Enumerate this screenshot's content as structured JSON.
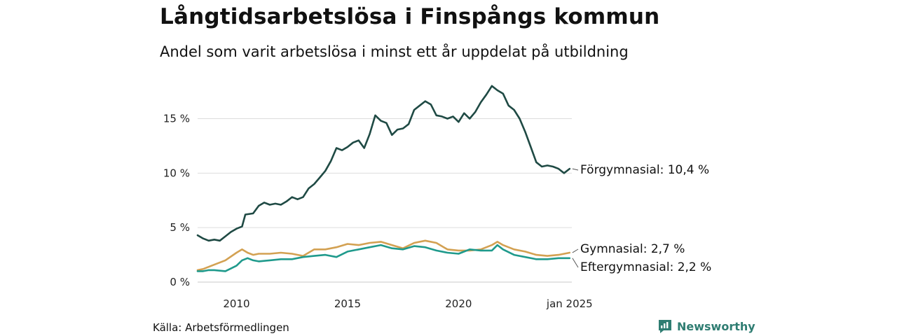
{
  "title": "Långtidsarbetslösa i Finspångs kommun",
  "subtitle": "Andel som varit arbetslösa i minst ett år uppdelat på utbildning",
  "source": "Källa: Arbetsförmedlingen",
  "brand": {
    "name": "Newsworthy",
    "icon": "newsworthy-logo-icon",
    "color": "#2f7d72"
  },
  "chart_data": {
    "type": "line",
    "title": "Långtidsarbetslösa i Finspångs kommun",
    "subtitle": "Andel som varit arbetslösa i minst ett år uppdelat på utbildning",
    "xlabel": "",
    "ylabel": "",
    "x_range": [
      2008.25,
      2025.1
    ],
    "ylim": [
      0,
      18.5
    ],
    "y_ticks": [
      0,
      5,
      10,
      15
    ],
    "y_tick_labels": [
      "0 %",
      "5 %",
      "10 %",
      "15 %"
    ],
    "x_ticks": [
      2010,
      2015,
      2020,
      2025.0
    ],
    "x_tick_labels": [
      "2010",
      "2015",
      "2020",
      "jan 2025"
    ],
    "grid": true,
    "series": [
      {
        "name": "Förgymnasial",
        "end_label": "Förgymnasial: 10,4 %",
        "color": "#1f4a44",
        "points": [
          [
            2008.25,
            4.3
          ],
          [
            2008.5,
            4.0
          ],
          [
            2008.75,
            3.8
          ],
          [
            2009.0,
            3.9
          ],
          [
            2009.25,
            3.8
          ],
          [
            2009.5,
            4.2
          ],
          [
            2009.75,
            4.6
          ],
          [
            2010.0,
            4.9
          ],
          [
            2010.25,
            5.1
          ],
          [
            2010.4,
            6.2
          ],
          [
            2010.75,
            6.3
          ],
          [
            2011.0,
            7.0
          ],
          [
            2011.25,
            7.3
          ],
          [
            2011.5,
            7.1
          ],
          [
            2011.75,
            7.2
          ],
          [
            2012.0,
            7.1
          ],
          [
            2012.25,
            7.4
          ],
          [
            2012.5,
            7.8
          ],
          [
            2012.75,
            7.6
          ],
          [
            2013.0,
            7.8
          ],
          [
            2013.25,
            8.6
          ],
          [
            2013.5,
            9.0
          ],
          [
            2013.75,
            9.6
          ],
          [
            2014.0,
            10.2
          ],
          [
            2014.25,
            11.1
          ],
          [
            2014.5,
            12.3
          ],
          [
            2014.75,
            12.1
          ],
          [
            2015.0,
            12.4
          ],
          [
            2015.25,
            12.8
          ],
          [
            2015.5,
            13.0
          ],
          [
            2015.75,
            12.3
          ],
          [
            2016.0,
            13.6
          ],
          [
            2016.25,
            15.3
          ],
          [
            2016.5,
            14.8
          ],
          [
            2016.75,
            14.6
          ],
          [
            2017.0,
            13.5
          ],
          [
            2017.25,
            14.0
          ],
          [
            2017.5,
            14.1
          ],
          [
            2017.75,
            14.5
          ],
          [
            2018.0,
            15.8
          ],
          [
            2018.25,
            16.2
          ],
          [
            2018.5,
            16.6
          ],
          [
            2018.75,
            16.3
          ],
          [
            2019.0,
            15.3
          ],
          [
            2019.25,
            15.2
          ],
          [
            2019.5,
            15.0
          ],
          [
            2019.75,
            15.2
          ],
          [
            2020.0,
            14.7
          ],
          [
            2020.25,
            15.5
          ],
          [
            2020.5,
            15.0
          ],
          [
            2020.75,
            15.6
          ],
          [
            2021.0,
            16.5
          ],
          [
            2021.25,
            17.2
          ],
          [
            2021.5,
            18.0
          ],
          [
            2021.75,
            17.6
          ],
          [
            2022.0,
            17.3
          ],
          [
            2022.25,
            16.2
          ],
          [
            2022.5,
            15.8
          ],
          [
            2022.75,
            15.0
          ],
          [
            2023.0,
            13.8
          ],
          [
            2023.25,
            12.4
          ],
          [
            2023.5,
            11.0
          ],
          [
            2023.75,
            10.6
          ],
          [
            2024.0,
            10.7
          ],
          [
            2024.25,
            10.6
          ],
          [
            2024.5,
            10.4
          ],
          [
            2024.75,
            10.0
          ],
          [
            2025.0,
            10.4
          ]
        ]
      },
      {
        "name": "Gymnasial",
        "end_label": "Gymnasial:  2,7 %",
        "color": "#d3a152",
        "points": [
          [
            2008.25,
            1.1
          ],
          [
            2008.5,
            1.2
          ],
          [
            2008.75,
            1.4
          ],
          [
            2009.0,
            1.6
          ],
          [
            2009.5,
            2.0
          ],
          [
            2010.0,
            2.7
          ],
          [
            2010.25,
            3.0
          ],
          [
            2010.5,
            2.7
          ],
          [
            2010.75,
            2.5
          ],
          [
            2011.0,
            2.6
          ],
          [
            2011.5,
            2.6
          ],
          [
            2012.0,
            2.7
          ],
          [
            2012.5,
            2.6
          ],
          [
            2013.0,
            2.4
          ],
          [
            2013.5,
            3.0
          ],
          [
            2014.0,
            3.0
          ],
          [
            2014.5,
            3.2
          ],
          [
            2015.0,
            3.5
          ],
          [
            2015.5,
            3.4
          ],
          [
            2016.0,
            3.6
          ],
          [
            2016.5,
            3.7
          ],
          [
            2017.0,
            3.4
          ],
          [
            2017.5,
            3.1
          ],
          [
            2018.0,
            3.6
          ],
          [
            2018.5,
            3.8
          ],
          [
            2019.0,
            3.6
          ],
          [
            2019.5,
            3.0
          ],
          [
            2020.0,
            2.9
          ],
          [
            2020.5,
            2.9
          ],
          [
            2021.0,
            3.0
          ],
          [
            2021.5,
            3.4
          ],
          [
            2021.75,
            3.7
          ],
          [
            2022.0,
            3.4
          ],
          [
            2022.5,
            3.0
          ],
          [
            2023.0,
            2.8
          ],
          [
            2023.5,
            2.5
          ],
          [
            2024.0,
            2.4
          ],
          [
            2024.5,
            2.5
          ],
          [
            2025.0,
            2.7
          ]
        ]
      },
      {
        "name": "Eftergymnasial",
        "end_label": "Eftergymnasial:  2,2 %",
        "color": "#1f9a8c",
        "points": [
          [
            2008.25,
            1.0
          ],
          [
            2008.5,
            1.0
          ],
          [
            2008.75,
            1.1
          ],
          [
            2009.0,
            1.1
          ],
          [
            2009.5,
            1.0
          ],
          [
            2010.0,
            1.5
          ],
          [
            2010.25,
            2.0
          ],
          [
            2010.5,
            2.2
          ],
          [
            2010.75,
            2.0
          ],
          [
            2011.0,
            1.9
          ],
          [
            2011.5,
            2.0
          ],
          [
            2012.0,
            2.1
          ],
          [
            2012.5,
            2.1
          ],
          [
            2013.0,
            2.3
          ],
          [
            2013.5,
            2.4
          ],
          [
            2014.0,
            2.5
          ],
          [
            2014.5,
            2.3
          ],
          [
            2015.0,
            2.8
          ],
          [
            2015.5,
            3.0
          ],
          [
            2016.0,
            3.2
          ],
          [
            2016.5,
            3.4
          ],
          [
            2017.0,
            3.1
          ],
          [
            2017.5,
            3.0
          ],
          [
            2018.0,
            3.3
          ],
          [
            2018.5,
            3.2
          ],
          [
            2019.0,
            2.9
          ],
          [
            2019.5,
            2.7
          ],
          [
            2020.0,
            2.6
          ],
          [
            2020.5,
            3.0
          ],
          [
            2021.0,
            2.9
          ],
          [
            2021.5,
            2.9
          ],
          [
            2021.75,
            3.4
          ],
          [
            2022.0,
            3.0
          ],
          [
            2022.5,
            2.5
          ],
          [
            2023.0,
            2.3
          ],
          [
            2023.5,
            2.1
          ],
          [
            2024.0,
            2.1
          ],
          [
            2024.5,
            2.2
          ],
          [
            2025.0,
            2.2
          ]
        ]
      }
    ]
  }
}
